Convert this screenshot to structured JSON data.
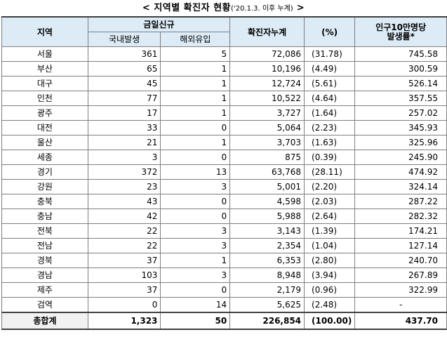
{
  "title": {
    "main": "< 지역별 확진자 현황",
    "sub": "('20.1.3. 이후 누계)",
    "close": " >"
  },
  "headers": {
    "region": "지역",
    "new_today": "금일신규",
    "domestic": "국내발생",
    "imported": "해외유입",
    "cumulative": "확진자누계",
    "percent": "(%)",
    "rate_line1": "인구10만명당",
    "rate_line2": "발생률*"
  },
  "rows": [
    {
      "region": "서울",
      "domestic": "361",
      "imported": "5",
      "cumulative": "72,086",
      "percent": "(31.78)",
      "rate": "745.58"
    },
    {
      "region": "부산",
      "domestic": "65",
      "imported": "1",
      "cumulative": "10,196",
      "percent": "(4.49)",
      "rate": "300.59"
    },
    {
      "region": "대구",
      "domestic": "45",
      "imported": "1",
      "cumulative": "12,724",
      "percent": "(5.61)",
      "rate": "526.14"
    },
    {
      "region": "인천",
      "domestic": "77",
      "imported": "1",
      "cumulative": "10,522",
      "percent": "(4.64)",
      "rate": "357.55"
    },
    {
      "region": "광주",
      "domestic": "17",
      "imported": "1",
      "cumulative": "3,727",
      "percent": "(1.64)",
      "rate": "257.02"
    },
    {
      "region": "대전",
      "domestic": "33",
      "imported": "0",
      "cumulative": "5,064",
      "percent": "(2.23)",
      "rate": "345.93"
    },
    {
      "region": "울산",
      "domestic": "21",
      "imported": "1",
      "cumulative": "3,703",
      "percent": "(1.63)",
      "rate": "325.96"
    },
    {
      "region": "세종",
      "domestic": "3",
      "imported": "0",
      "cumulative": "875",
      "percent": "(0.39)",
      "rate": "245.90"
    },
    {
      "region": "경기",
      "domestic": "372",
      "imported": "13",
      "cumulative": "63,768",
      "percent": "(28.11)",
      "rate": "474.92"
    },
    {
      "region": "강원",
      "domestic": "23",
      "imported": "3",
      "cumulative": "5,001",
      "percent": "(2.20)",
      "rate": "324.14"
    },
    {
      "region": "충북",
      "domestic": "43",
      "imported": "0",
      "cumulative": "4,598",
      "percent": "(2.03)",
      "rate": "287.22"
    },
    {
      "region": "충남",
      "domestic": "42",
      "imported": "0",
      "cumulative": "5,988",
      "percent": "(2.64)",
      "rate": "282.32"
    },
    {
      "region": "전북",
      "domestic": "22",
      "imported": "3",
      "cumulative": "3,143",
      "percent": "(1.39)",
      "rate": "174.21"
    },
    {
      "region": "전남",
      "domestic": "22",
      "imported": "3",
      "cumulative": "2,354",
      "percent": "(1.04)",
      "rate": "127.14"
    },
    {
      "region": "경북",
      "domestic": "37",
      "imported": "1",
      "cumulative": "6,353",
      "percent": "(2.80)",
      "rate": "240.70"
    },
    {
      "region": "경남",
      "domestic": "103",
      "imported": "3",
      "cumulative": "8,948",
      "percent": "(3.94)",
      "rate": "267.89"
    },
    {
      "region": "제주",
      "domestic": "37",
      "imported": "0",
      "cumulative": "2,179",
      "percent": "(0.96)",
      "rate": "322.99"
    },
    {
      "region": "검역",
      "domestic": "0",
      "imported": "14",
      "cumulative": "5,625",
      "percent": "(2.48)",
      "rate": "-"
    }
  ],
  "total": {
    "region": "총합계",
    "domestic": "1,323",
    "imported": "50",
    "cumulative": "226,854",
    "percent": "(100.00)",
    "rate": "437.70"
  },
  "colors": {
    "header_bg": "#dcebf5",
    "border": "#7f7f7f"
  }
}
